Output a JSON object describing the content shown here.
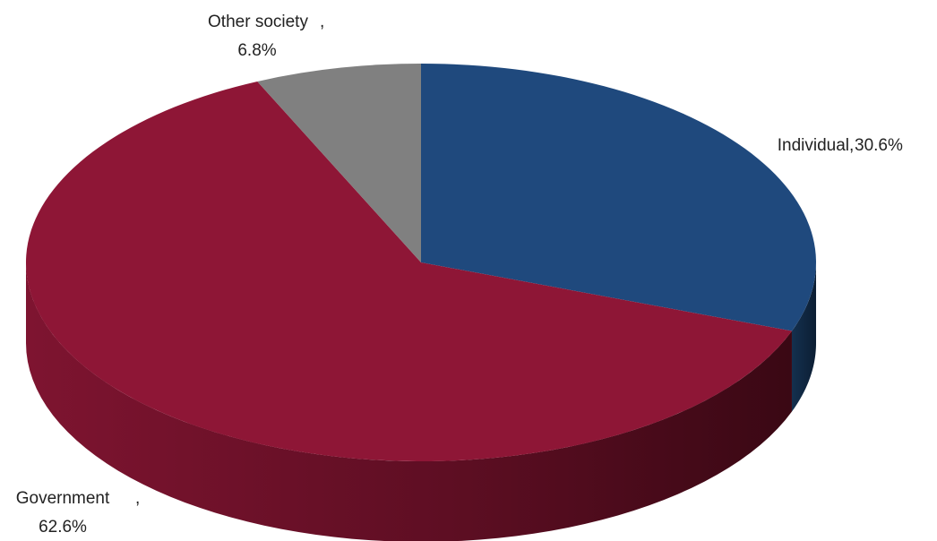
{
  "chart_data": {
    "type": "pie",
    "title": "",
    "slices": [
      {
        "name": "Individual",
        "value": 30.6,
        "display": "30.6%",
        "color": "#1f497d"
      },
      {
        "name": "Government",
        "value": 62.6,
        "display": "62.6%",
        "color": "#8e1636"
      },
      {
        "name": "Other society",
        "value": 6.8,
        "display": "6.8%",
        "color": "#808080"
      }
    ]
  }
}
